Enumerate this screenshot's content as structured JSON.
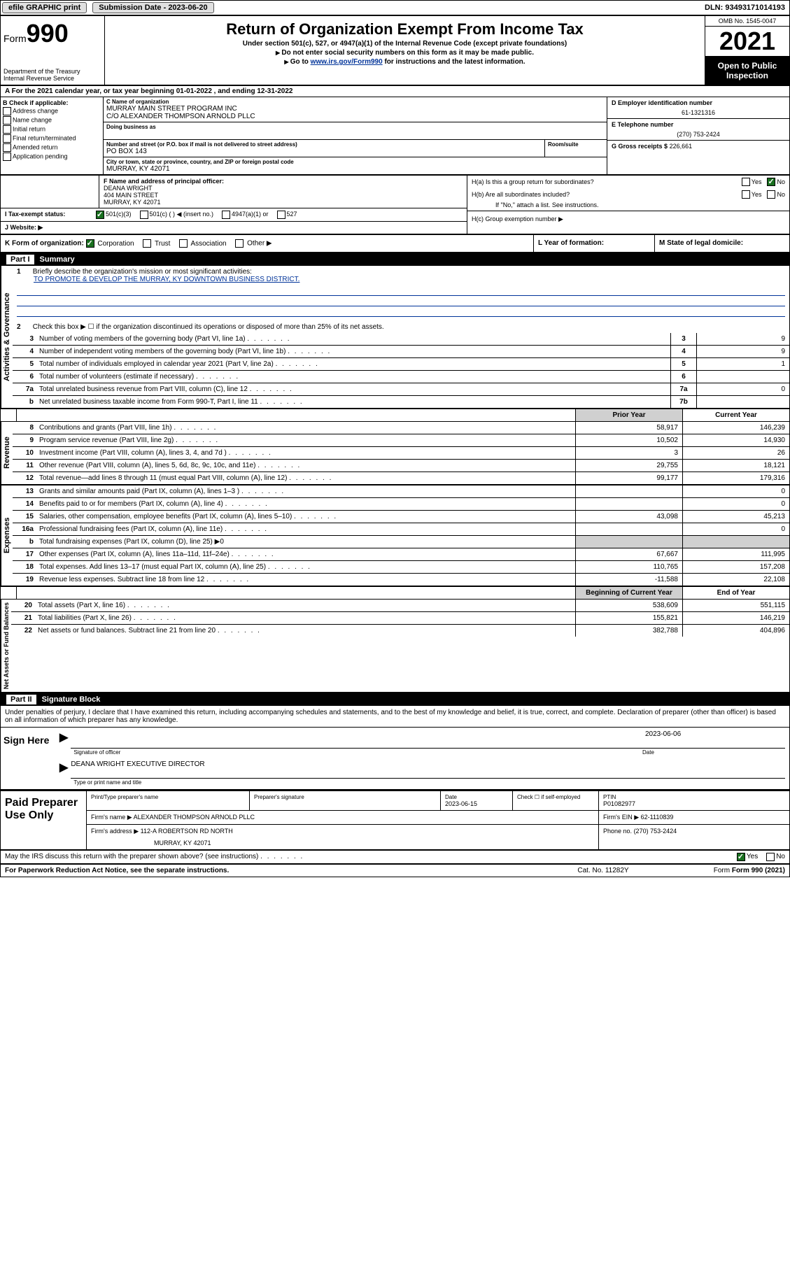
{
  "topbar": {
    "efile_label": "efile GRAPHIC print",
    "submission_label": "Submission Date - 2023-06-20",
    "dln": "DLN: 93493171014193"
  },
  "header": {
    "form_label": "Form",
    "form_number": "990",
    "dept": "Department of the Treasury\nInternal Revenue Service",
    "title": "Return of Organization Exempt From Income Tax",
    "subtitle": "Under section 501(c), 527, or 4947(a)(1) of the Internal Revenue Code (except private foundations)",
    "warn1": "Do not enter social security numbers on this form as it may be made public.",
    "warn2_pre": "Go to ",
    "warn2_link": "www.irs.gov/Form990",
    "warn2_post": " for instructions and the latest information.",
    "omb": "OMB No. 1545-0047",
    "year": "2021",
    "open_public": "Open to Public Inspection"
  },
  "line_a": "For the 2021 calendar year, or tax year beginning 01-01-2022  , and ending 12-31-2022",
  "box_b": {
    "title": "B Check if applicable:",
    "items": [
      "Address change",
      "Name change",
      "Initial return",
      "Final return/terminated",
      "Amended return",
      "Application pending"
    ]
  },
  "box_c": {
    "name_label": "C Name of organization",
    "name": "MURRAY MAIN STREET PROGRAM INC",
    "co": "C/O ALEXANDER THOMPSON ARNOLD PLLC",
    "dba_label": "Doing business as",
    "addr_label": "Number and street (or P.O. box if mail is not delivered to street address)",
    "room_label": "Room/suite",
    "addr": "PO BOX 143",
    "city_label": "City or town, state or province, country, and ZIP or foreign postal code",
    "city": "MURRAY, KY  42071"
  },
  "box_d": {
    "label": "D Employer identification number",
    "value": "61-1321316"
  },
  "box_e": {
    "label": "E Telephone number",
    "value": "(270) 753-2424"
  },
  "box_g": {
    "label": "G Gross receipts $",
    "value": "226,661"
  },
  "box_f": {
    "label": "F  Name and address of principal officer:",
    "name": "DEANA WRIGHT",
    "addr": "404 MAIN STREET",
    "city": "MURRAY, KY  42071"
  },
  "box_h": {
    "ha": "H(a)  Is this a group return for subordinates?",
    "hb": "H(b)  Are all subordinates included?",
    "hb_note": "If \"No,\" attach a list. See instructions.",
    "hc": "H(c)  Group exemption number ▶",
    "yes": "Yes",
    "no": "No"
  },
  "box_i": {
    "label": "I  Tax-exempt status:",
    "opts": [
      "501(c)(3)",
      "501(c) (  ) ◀ (insert no.)",
      "4947(a)(1) or",
      "527"
    ]
  },
  "box_j": {
    "label": "J  Website: ▶"
  },
  "box_k": {
    "label": "K Form of organization:",
    "opts": [
      "Corporation",
      "Trust",
      "Association",
      "Other ▶"
    ]
  },
  "box_l": {
    "label": "L Year of formation:"
  },
  "box_m": {
    "label": "M State of legal domicile:"
  },
  "part1": {
    "label": "Part I",
    "title": "Summary"
  },
  "summary": {
    "sec_gov": "Activities & Governance",
    "sec_rev": "Revenue",
    "sec_exp": "Expenses",
    "sec_net": "Net Assets or Fund Balances",
    "line1_label": "Briefly describe the organization's mission or most significant activities:",
    "line1_text": "TO PROMOTE & DEVELOP THE MURRAY, KY DOWNTOWN BUSINESS DISTRICT.",
    "line2": "Check this box ▶ ☐  if the organization discontinued its operations or disposed of more than 25% of its net assets.",
    "lines_gov": [
      {
        "n": "3",
        "d": "Number of voting members of the governing body (Part VI, line 1a)",
        "box": "3",
        "v": "9"
      },
      {
        "n": "4",
        "d": "Number of independent voting members of the governing body (Part VI, line 1b)",
        "box": "4",
        "v": "9"
      },
      {
        "n": "5",
        "d": "Total number of individuals employed in calendar year 2021 (Part V, line 2a)",
        "box": "5",
        "v": "1"
      },
      {
        "n": "6",
        "d": "Total number of volunteers (estimate if necessary)",
        "box": "6",
        "v": ""
      },
      {
        "n": "7a",
        "d": "Total unrelated business revenue from Part VIII, column (C), line 12",
        "box": "7a",
        "v": "0"
      },
      {
        "n": "b",
        "d": "Net unrelated business taxable income from Form 990-T, Part I, line 11",
        "box": "7b",
        "v": ""
      }
    ],
    "col_prior": "Prior Year",
    "col_current": "Current Year",
    "col_beg": "Beginning of Current Year",
    "col_end": "End of Year",
    "lines_rev": [
      {
        "n": "8",
        "d": "Contributions and grants (Part VIII, line 1h)",
        "p": "58,917",
        "c": "146,239"
      },
      {
        "n": "9",
        "d": "Program service revenue (Part VIII, line 2g)",
        "p": "10,502",
        "c": "14,930"
      },
      {
        "n": "10",
        "d": "Investment income (Part VIII, column (A), lines 3, 4, and 7d )",
        "p": "3",
        "c": "26"
      },
      {
        "n": "11",
        "d": "Other revenue (Part VIII, column (A), lines 5, 6d, 8c, 9c, 10c, and 11e)",
        "p": "29,755",
        "c": "18,121"
      },
      {
        "n": "12",
        "d": "Total revenue—add lines 8 through 11 (must equal Part VIII, column (A), line 12)",
        "p": "99,177",
        "c": "179,316"
      }
    ],
    "lines_exp": [
      {
        "n": "13",
        "d": "Grants and similar amounts paid (Part IX, column (A), lines 1–3 )",
        "p": "",
        "c": "0"
      },
      {
        "n": "14",
        "d": "Benefits paid to or for members (Part IX, column (A), line 4)",
        "p": "",
        "c": "0"
      },
      {
        "n": "15",
        "d": "Salaries, other compensation, employee benefits (Part IX, column (A), lines 5–10)",
        "p": "43,098",
        "c": "45,213"
      },
      {
        "n": "16a",
        "d": "Professional fundraising fees (Part IX, column (A), line 11e)",
        "p": "",
        "c": "0"
      },
      {
        "n": "b",
        "d": "Total fundraising expenses (Part IX, column (D), line 25) ▶0",
        "p": null,
        "c": null
      },
      {
        "n": "17",
        "d": "Other expenses (Part IX, column (A), lines 11a–11d, 11f–24e)",
        "p": "67,667",
        "c": "111,995"
      },
      {
        "n": "18",
        "d": "Total expenses. Add lines 13–17 (must equal Part IX, column (A), line 25)",
        "p": "110,765",
        "c": "157,208"
      },
      {
        "n": "19",
        "d": "Revenue less expenses. Subtract line 18 from line 12",
        "p": "-11,588",
        "c": "22,108"
      }
    ],
    "lines_net": [
      {
        "n": "20",
        "d": "Total assets (Part X, line 16)",
        "p": "538,609",
        "c": "551,115"
      },
      {
        "n": "21",
        "d": "Total liabilities (Part X, line 26)",
        "p": "155,821",
        "c": "146,219"
      },
      {
        "n": "22",
        "d": "Net assets or fund balances. Subtract line 21 from line 20",
        "p": "382,788",
        "c": "404,896"
      }
    ]
  },
  "part2": {
    "label": "Part II",
    "title": "Signature Block"
  },
  "sig": {
    "jurat": "Under penalties of perjury, I declare that I have examined this return, including accompanying schedules and statements, and to the best of my knowledge and belief, it is true, correct, and complete. Declaration of preparer (other than officer) is based on all information of which preparer has any knowledge.",
    "sign_here": "Sign Here",
    "sig_officer": "Signature of officer",
    "date_label": "Date",
    "date": "2023-06-06",
    "name_title": "DEANA WRIGHT  EXECUTIVE DIRECTOR",
    "type_label": "Type or print name and title"
  },
  "paid": {
    "label": "Paid Preparer Use Only",
    "h1": "Print/Type preparer's name",
    "h2": "Preparer's signature",
    "h3": "Date",
    "date": "2023-06-15",
    "h4": "Check ☐ if self-employed",
    "h5": "PTIN",
    "ptin": "P01082977",
    "firm_name_label": "Firm's name    ▶",
    "firm_name": "ALEXANDER THOMPSON ARNOLD PLLC",
    "firm_ein_label": "Firm's EIN ▶",
    "firm_ein": "62-1110839",
    "firm_addr_label": "Firm's address ▶",
    "firm_addr1": "112-A ROBERTSON RD NORTH",
    "firm_addr2": "MURRAY, KY  42071",
    "phone_label": "Phone no.",
    "phone": "(270) 753-2424"
  },
  "footer": {
    "discuss": "May the IRS discuss this return with the preparer shown above? (see instructions)",
    "yes": "Yes",
    "no": "No",
    "paperwork": "For Paperwork Reduction Act Notice, see the separate instructions.",
    "cat": "Cat. No. 11282Y",
    "form": "Form 990 (2021)"
  }
}
